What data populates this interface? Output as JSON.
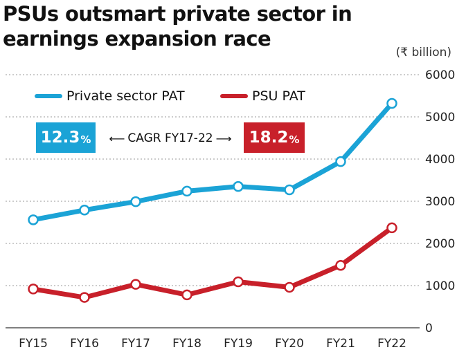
{
  "header": {
    "title_line1": "PSUs outsmart private sector in",
    "title_line2": "earnings expansion race"
  },
  "unit_label": "(₹ billion)",
  "annotation": {
    "private_cagr": "12.3",
    "psu_cagr": "18.2",
    "pct_sign": "%",
    "label": "CAGR FY17-22",
    "arrow_left": "⟵",
    "arrow_right": "⟶"
  },
  "colors": {
    "private": "#1ba3d6",
    "psu": "#c8202a",
    "grid": "#999999"
  },
  "chart_data": {
    "type": "line",
    "categories": [
      "FY15",
      "FY16",
      "FY17",
      "FY18",
      "FY19",
      "FY20",
      "FY21",
      "FY22"
    ],
    "series": [
      {
        "name": "Private sector PAT",
        "values": [
          2560,
          2790,
          2990,
          3240,
          3350,
          3270,
          3940,
          5320
        ]
      },
      {
        "name": "PSU PAT",
        "values": [
          920,
          720,
          1030,
          780,
          1090,
          960,
          1480,
          2370
        ]
      }
    ],
    "yticks": [
      0,
      1000,
      2000,
      3000,
      4000,
      5000,
      6000
    ],
    "ylim": [
      0,
      6000
    ],
    "ylabel": "(₹ billion)",
    "grid": true,
    "legend": "top-left"
  }
}
